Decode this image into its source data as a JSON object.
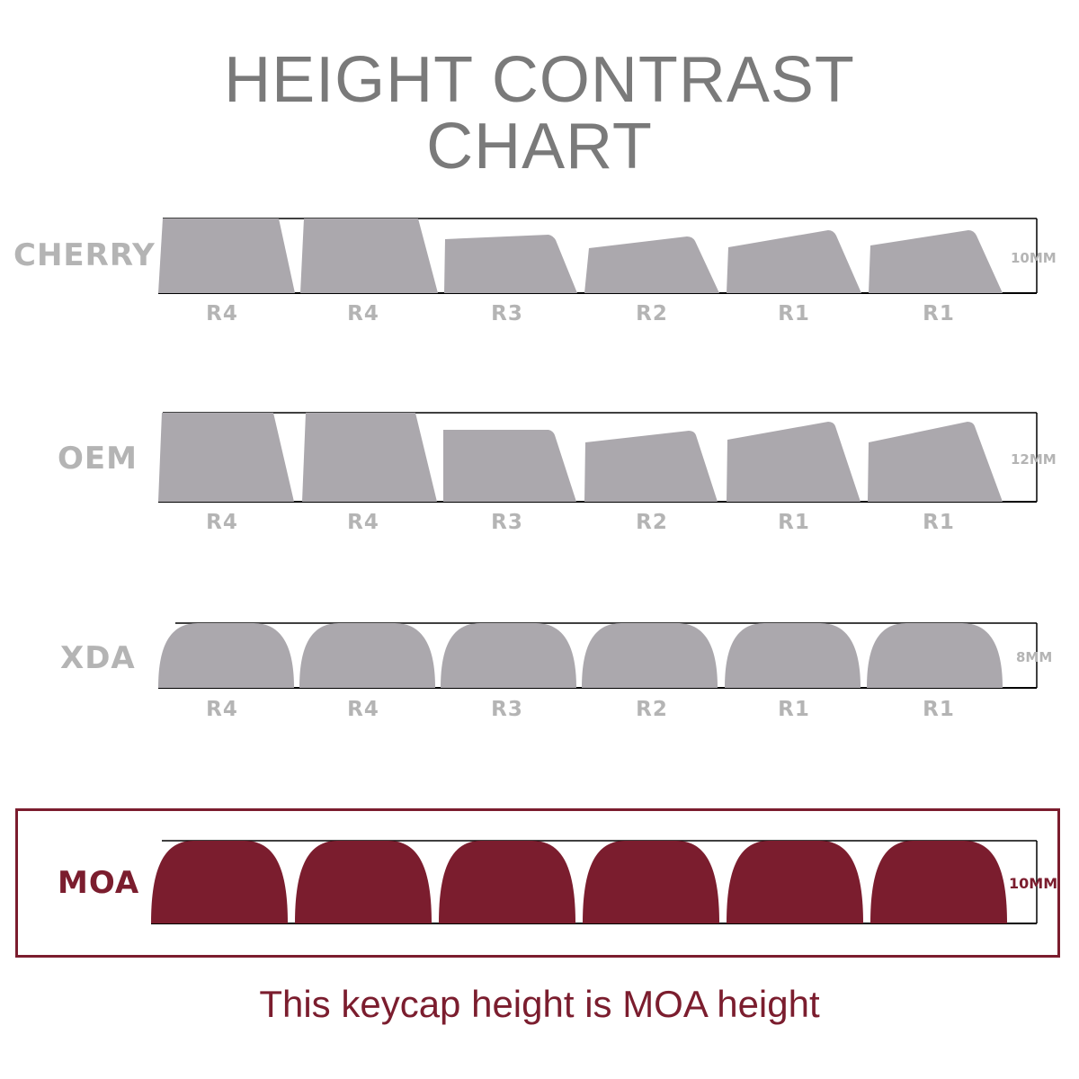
{
  "title": {
    "line1": "HEIGHT CONTRAST",
    "line2": "CHART"
  },
  "profiles": [
    {
      "name": "CHERRY",
      "height": "10MM",
      "rows": [
        "R4",
        "R4",
        "R3",
        "R2",
        "R1",
        "R1"
      ]
    },
    {
      "name": "OEM",
      "height": "12MM",
      "rows": [
        "R4",
        "R4",
        "R3",
        "R2",
        "R1",
        "R1"
      ]
    },
    {
      "name": "XDA",
      "height": "8MM",
      "rows": [
        "R4",
        "R4",
        "R3",
        "R2",
        "R1",
        "R1"
      ]
    },
    {
      "name": "MOA",
      "height": "10MM"
    }
  ],
  "caption": "This keycap height is MOA height",
  "colors": {
    "gray_keycap": "#aba8ad",
    "moa_keycap": "#7b1d2e",
    "title_text": "#7a7a7a",
    "label_text": "#b4b4b4"
  }
}
